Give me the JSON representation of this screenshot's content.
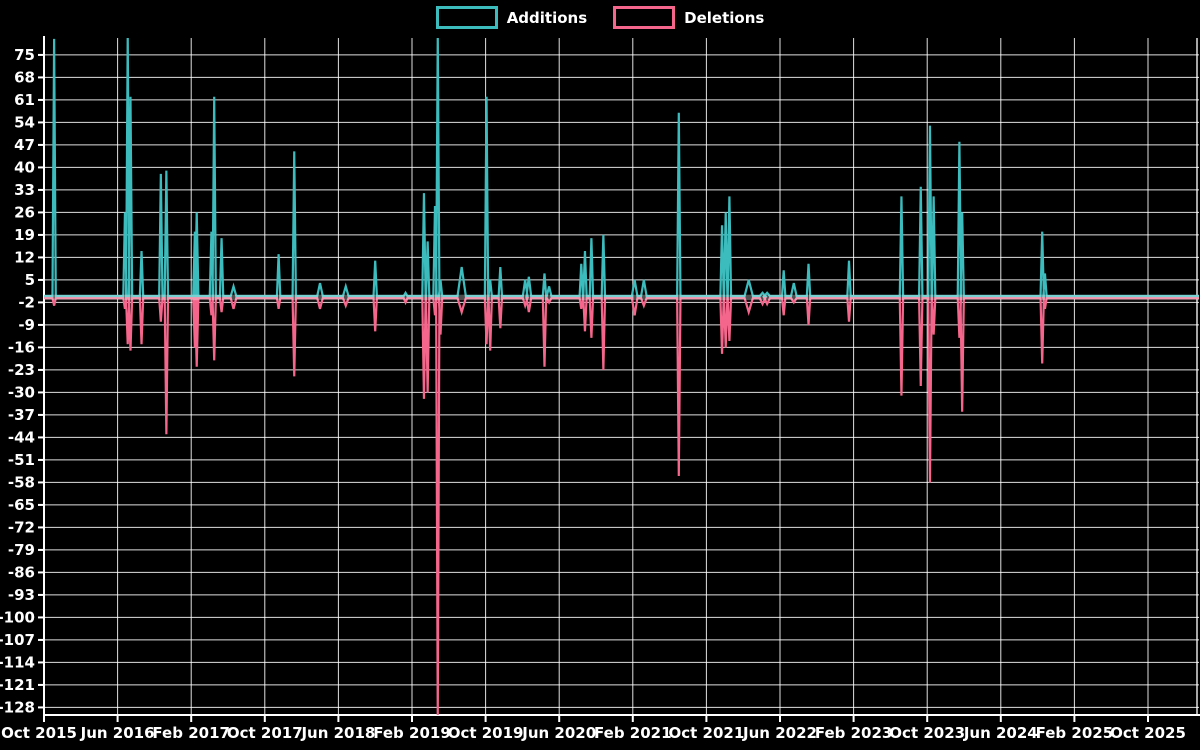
{
  "chart_data": {
    "type": "line",
    "title": "",
    "legend": [
      {
        "label": "Additions",
        "color": "#3dbcbe"
      },
      {
        "label": "Deletions",
        "color": "#f4668b"
      }
    ],
    "colors": {
      "background": "#000000",
      "grid": "#ffffff",
      "axis": "#ffffff",
      "text": "#ffffff",
      "additions": "#3dbcbe",
      "deletions": "#f4668b"
    },
    "x_axis": {
      "labels": [
        "Oct 2015",
        "Jun 2016",
        "Feb 2017",
        "Oct 2017",
        "Jun 2018",
        "Feb 2019",
        "Oct 2019",
        "Jun 2020",
        "Feb 2021",
        "Oct 2021",
        "Jun 2022",
        "Feb 2023",
        "Oct 2023",
        "Jun 2024",
        "Feb 2025",
        "Oct 2025"
      ],
      "months_between_labels": 8,
      "start": "Oct 2015",
      "end": "Oct 2025"
    },
    "y_axis": {
      "ticks": [
        75,
        68,
        61,
        54,
        47,
        40,
        33,
        26,
        19,
        12,
        5,
        -2,
        -9,
        -16,
        -23,
        -30,
        -37,
        -44,
        -51,
        -58,
        -65,
        -72,
        -79,
        -86,
        -93,
        -100,
        -107,
        -114,
        -121,
        -128
      ],
      "min": -130.3,
      "max": 80.3
    },
    "grid": true,
    "series_note": "spikes are [month_offset_from_Oct2015, additions_peak, deletions_peak, optional_half_width_months]; baseline is 0 between spikes; values beyond axis range are clipped",
    "spikes": [
      [
        1.1,
        80,
        -3
      ],
      [
        8.8,
        26,
        -4
      ],
      [
        9.1,
        81,
        -15
      ],
      [
        9.4,
        62,
        -17
      ],
      [
        10.6,
        14,
        -15
      ],
      [
        12.7,
        38,
        -8
      ],
      [
        13.3,
        39,
        -43
      ],
      [
        16.4,
        20,
        -16
      ],
      [
        16.6,
        26,
        -22
      ],
      [
        18.2,
        20,
        -6
      ],
      [
        18.5,
        62,
        -20
      ],
      [
        19.3,
        18,
        -5
      ],
      [
        20.6,
        3,
        -4,
        0.3
      ],
      [
        25.5,
        13,
        -4
      ],
      [
        27.2,
        45,
        -25
      ],
      [
        30.0,
        4,
        -4,
        0.3
      ],
      [
        32.8,
        3,
        -3,
        0.3
      ],
      [
        36.0,
        11,
        -11
      ],
      [
        39.3,
        1,
        -2,
        0.2
      ],
      [
        41.3,
        32,
        -32
      ],
      [
        41.7,
        17,
        -30
      ],
      [
        42.5,
        28,
        -6
      ],
      [
        42.8,
        81,
        -131
      ],
      [
        43.1,
        5,
        -12
      ],
      [
        45.4,
        9,
        -5,
        0.45
      ],
      [
        48.1,
        62,
        -15
      ],
      [
        48.5,
        5,
        -17
      ],
      [
        49.6,
        9,
        -10
      ],
      [
        52.3,
        5,
        -3,
        0.25
      ],
      [
        52.7,
        6,
        -5,
        0.25
      ],
      [
        54.4,
        7,
        -22
      ],
      [
        54.9,
        3,
        -2,
        0.25
      ],
      [
        58.4,
        10,
        -4
      ],
      [
        58.8,
        14,
        -11
      ],
      [
        59.5,
        18,
        -13
      ],
      [
        60.8,
        19,
        -23
      ],
      [
        64.2,
        5,
        -6,
        0.3
      ],
      [
        65.2,
        5,
        -3,
        0.3
      ],
      [
        69.0,
        57,
        -56
      ],
      [
        73.7,
        22,
        -18
      ],
      [
        74.1,
        26,
        -16
      ],
      [
        74.5,
        31,
        -14
      ],
      [
        76.6,
        5,
        -5,
        0.45
      ],
      [
        78.1,
        1,
        -2.5,
        0.3
      ],
      [
        78.6,
        1,
        -2.5,
        0.3
      ],
      [
        80.4,
        8,
        -6
      ],
      [
        81.5,
        4,
        -2,
        0.3
      ],
      [
        83.1,
        10,
        -9
      ],
      [
        87.5,
        11,
        -8
      ],
      [
        93.2,
        31,
        -31
      ],
      [
        95.3,
        34,
        -28
      ],
      [
        96.3,
        53,
        -58
      ],
      [
        96.7,
        31,
        -12
      ],
      [
        99.5,
        48,
        -13
      ],
      [
        99.8,
        26,
        -36
      ],
      [
        108.5,
        20,
        -21
      ],
      [
        108.8,
        7,
        -4
      ]
    ]
  }
}
